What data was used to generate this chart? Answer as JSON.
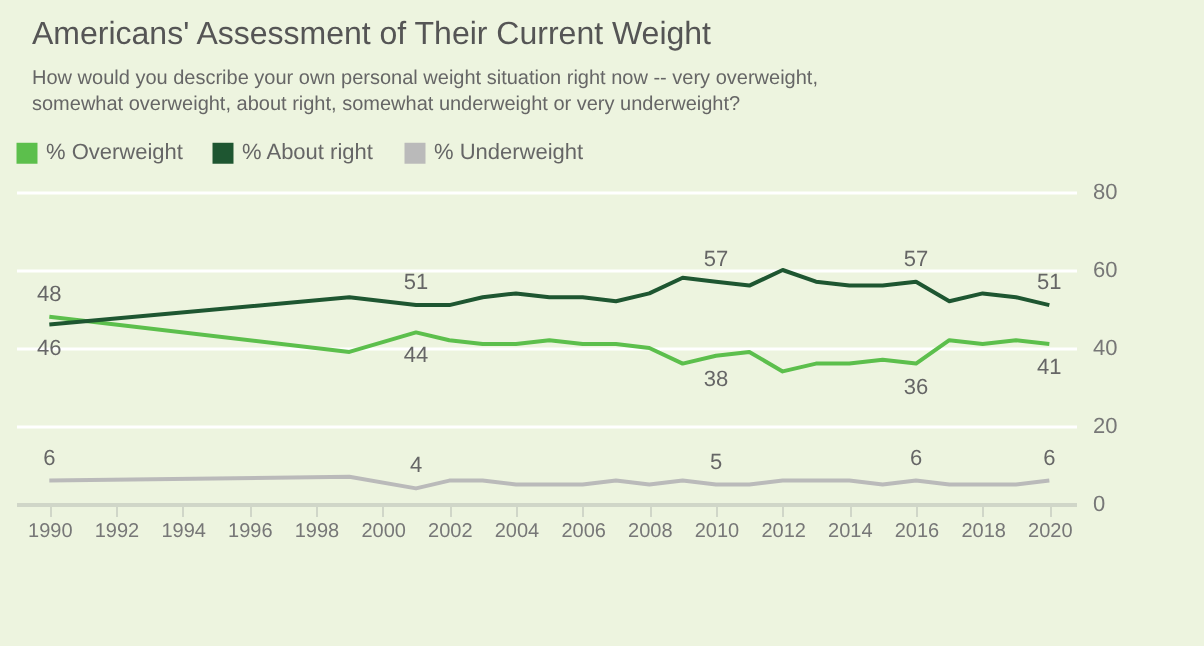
{
  "chart_data": {
    "type": "line",
    "title": "Americans' Assessment of Their Current Weight",
    "subtitle": "How would you describe your own personal weight situation right now -- very overweight, somewhat overweight, about right, somewhat underweight or very underweight?",
    "x": [
      1990,
      1999,
      2001,
      2002,
      2003,
      2004,
      2005,
      2006,
      2007,
      2008,
      2009,
      2010,
      2011,
      2012,
      2013,
      2014,
      2015,
      2016,
      2017,
      2018,
      2019,
      2020
    ],
    "series": [
      {
        "name": "% Overweight",
        "color": "#5cbf4c",
        "values": [
          48,
          39,
          44,
          42,
          41,
          41,
          42,
          41,
          41,
          40,
          36,
          38,
          39,
          34,
          36,
          36,
          37,
          36,
          42,
          41,
          42,
          41
        ],
        "value_labels": [
          "48",
          null,
          "44",
          null,
          null,
          null,
          null,
          null,
          null,
          null,
          null,
          "38",
          null,
          null,
          null,
          null,
          null,
          "36",
          null,
          null,
          null,
          "41"
        ]
      },
      {
        "name": "% About right",
        "color": "#1e5631",
        "values": [
          46,
          53,
          51,
          51,
          53,
          54,
          53,
          53,
          52,
          54,
          58,
          57,
          56,
          60,
          57,
          56,
          56,
          57,
          52,
          54,
          53,
          51
        ],
        "value_labels": [
          "46",
          null,
          "51",
          null,
          null,
          null,
          null,
          null,
          null,
          null,
          null,
          "57",
          null,
          null,
          null,
          null,
          null,
          "57",
          null,
          null,
          null,
          "51"
        ]
      },
      {
        "name": "% Underweight",
        "color": "#bababa",
        "values": [
          6,
          7,
          4,
          6,
          6,
          5,
          5,
          5,
          6,
          5,
          6,
          5,
          5,
          6,
          6,
          6,
          5,
          6,
          5,
          5,
          5,
          6
        ],
        "value_labels": [
          "6",
          null,
          "4",
          null,
          null,
          null,
          null,
          null,
          null,
          null,
          null,
          "5",
          null,
          null,
          null,
          null,
          null,
          "6",
          null,
          null,
          null,
          "6"
        ]
      }
    ],
    "xlim": [
      1989,
      2020.8
    ],
    "xticks": [
      1990,
      1992,
      1994,
      1996,
      1998,
      2000,
      2002,
      2004,
      2006,
      2008,
      2010,
      2012,
      2014,
      2016,
      2018,
      2020
    ],
    "ylim": [
      0,
      80
    ],
    "yticks": [
      0,
      20,
      40,
      60,
      80
    ],
    "grid": "y",
    "legend": "top left",
    "marker": "none",
    "line_style": "solid"
  }
}
